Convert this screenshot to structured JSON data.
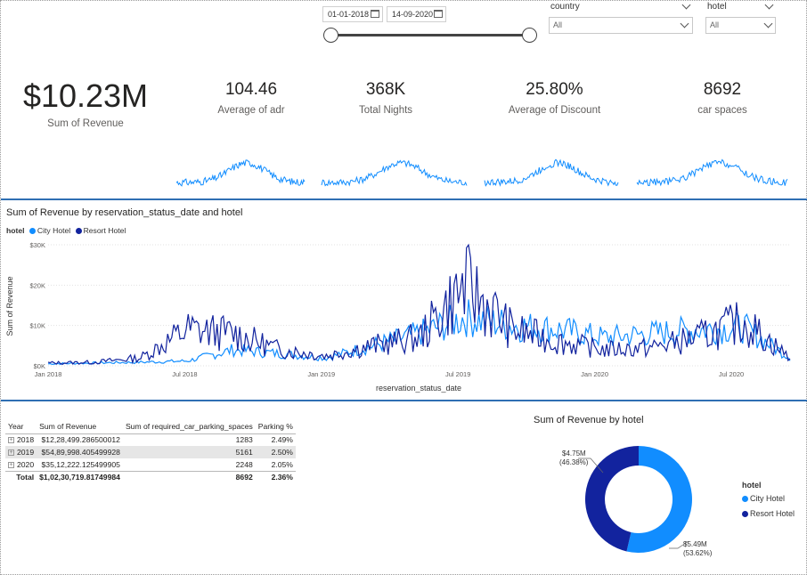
{
  "slicers": {
    "date_start": "01-01-2018",
    "date_end": "14-09-2020",
    "country": {
      "label": "country",
      "value": "All"
    },
    "hotel": {
      "label": "hotel",
      "value": "All"
    }
  },
  "kpis": {
    "revenue": {
      "value": "$10.23M",
      "label": "Sum of Revenue"
    },
    "adr": {
      "value": "104.46",
      "label": "Average of adr"
    },
    "nights": {
      "value": "368K",
      "label": "Total Nights"
    },
    "discount": {
      "value": "25.80%",
      "label": "Average of Discount"
    },
    "car": {
      "value": "8692",
      "label": "car spaces"
    }
  },
  "colors": {
    "city": "#118dff",
    "resort": "#12239e",
    "divider": "#2f6fb3"
  },
  "chart_data": [
    {
      "type": "line",
      "title": "Sum of Revenue by reservation_status_date and hotel",
      "xlabel": "reservation_status_date",
      "ylabel": "Sum of Revenue",
      "legend_title": "hotel",
      "legend": "top-left",
      "x_ticks": [
        "Jan 2018",
        "Jul 2018",
        "Jan 2019",
        "Jul 2019",
        "Jan 2020",
        "Jul 2020"
      ],
      "y_ticks": [
        "$0K",
        "$10K",
        "$20K",
        "$30K"
      ],
      "ylim": [
        0,
        30000
      ],
      "x": [
        "2018-01",
        "2018-03",
        "2018-05",
        "2018-07",
        "2018-09",
        "2018-11",
        "2019-01",
        "2019-03",
        "2019-05",
        "2019-07",
        "2019-09",
        "2019-11",
        "2020-01",
        "2020-03",
        "2020-05",
        "2020-07",
        "2020-09"
      ],
      "series": [
        {
          "name": "City Hotel",
          "values": [
            500,
            700,
            900,
            1200,
            4000,
            3000,
            2000,
            5000,
            8000,
            12000,
            10000,
            9000,
            7000,
            8000,
            9000,
            9500,
            2000
          ]
        },
        {
          "name": "Resort Hotel",
          "values": [
            700,
            900,
            2000,
            9000,
            8000,
            4000,
            2500,
            5000,
            7000,
            20000,
            9000,
            6000,
            4000,
            4500,
            7000,
            11000,
            2000
          ]
        }
      ]
    },
    {
      "type": "pie",
      "title": "Sum of Revenue by hotel",
      "legend_title": "hotel",
      "legend": "right",
      "slices": [
        {
          "name": "City Hotel",
          "value": 5.49,
          "label": "$5.49M",
          "pct": "(53.62%)"
        },
        {
          "name": "Resort Hotel",
          "value": 4.75,
          "label": "$4.75M",
          "pct": "(46.38%)"
        }
      ]
    },
    {
      "type": "table",
      "columns": [
        "Year",
        "Sum of Revenue",
        "Sum of required_car_parking_spaces",
        "Parking %"
      ],
      "rows": [
        {
          "year": "2018",
          "revenue": "$12,28,499.286500012",
          "parking": "1283",
          "pct": "2.49%"
        },
        {
          "year": "2019",
          "revenue": "$54,89,998.405499928",
          "parking": "5161",
          "pct": "2.50%"
        },
        {
          "year": "2020",
          "revenue": "$35,12,222.125499905",
          "parking": "2248",
          "pct": "2.05%"
        }
      ],
      "total": {
        "year": "Total",
        "revenue": "$1,02,30,719.81749984",
        "parking": "8692",
        "pct": "2.36%"
      }
    }
  ]
}
